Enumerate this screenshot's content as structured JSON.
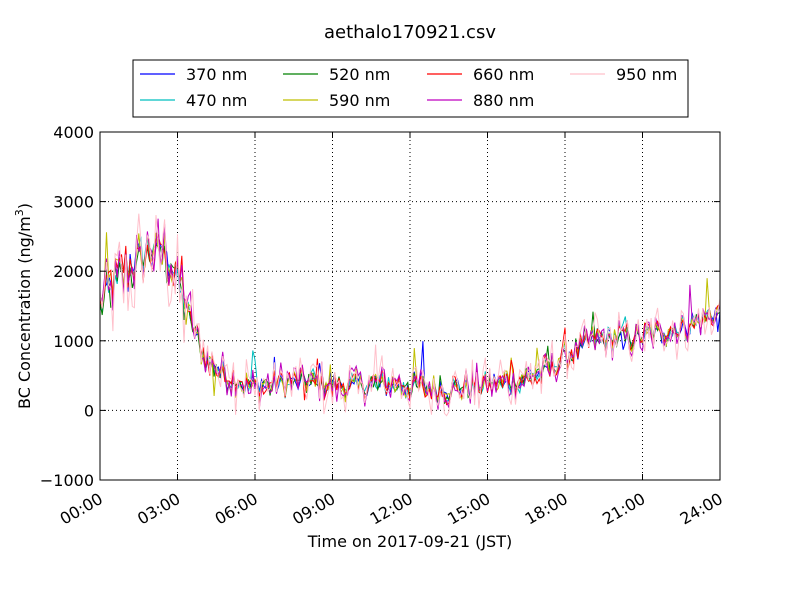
{
  "chart_data": {
    "type": "line",
    "title": "aethalo170921.csv",
    "xlabel": "Time on 2017-09-21 (JST)",
    "ylabel": "BC Concentration (ng/m³)",
    "ylabel_main": "BC Concentration (ng/m",
    "ylabel_sup": "3",
    "ylabel_end": ")",
    "xlim": [
      0,
      24
    ],
    "ylim": [
      -1000,
      4000
    ],
    "x_unit": "hours since 00:00",
    "x_ticks": [
      0,
      3,
      6,
      9,
      12,
      15,
      18,
      21,
      24
    ],
    "x_tick_labels": [
      "00:00",
      "03:00",
      "06:00",
      "09:00",
      "12:00",
      "15:00",
      "18:00",
      "21:00",
      "24:00"
    ],
    "y_ticks": [
      -1000,
      0,
      1000,
      2000,
      3000,
      4000
    ],
    "y_tick_labels": [
      "−1000",
      "0",
      "1000",
      "2000",
      "3000",
      "4000"
    ],
    "grid": true,
    "legend_position": "top-center",
    "sample_interval_minutes": 5,
    "baseline_profile": {
      "hours": [
        0,
        0.5,
        1,
        1.5,
        2,
        2.5,
        3,
        3.5,
        4,
        5,
        6,
        7,
        8,
        9,
        10,
        11,
        12,
        13,
        14,
        15,
        16,
        17,
        18,
        19,
        20,
        21,
        22,
        23,
        24
      ],
      "values": [
        1500,
        1800,
        2000,
        2150,
        2300,
        2250,
        1900,
        1300,
        800,
        450,
        320,
        400,
        420,
        370,
        340,
        380,
        360,
        300,
        320,
        380,
        420,
        520,
        750,
        1000,
        1050,
        1050,
        1150,
        1250,
        1400
      ]
    },
    "series": [
      {
        "name": "370 nm",
        "color": "#0000ff",
        "noise": 180,
        "spike": 1.0
      },
      {
        "name": "470 nm",
        "color": "#00bfbf",
        "noise": 180,
        "spike": 1.0
      },
      {
        "name": "520 nm",
        "color": "#008000",
        "noise": 190,
        "spike": 1.0
      },
      {
        "name": "590 nm",
        "color": "#bfbf00",
        "noise": 200,
        "spike": 1.0
      },
      {
        "name": "660 nm",
        "color": "#ff0000",
        "noise": 210,
        "spike": 1.1
      },
      {
        "name": "880 nm",
        "color": "#bf00bf",
        "noise": 260,
        "spike": 1.3
      },
      {
        "name": "950 nm",
        "color": "#ffc0cb",
        "noise": 380,
        "spike": 1.6
      }
    ]
  }
}
